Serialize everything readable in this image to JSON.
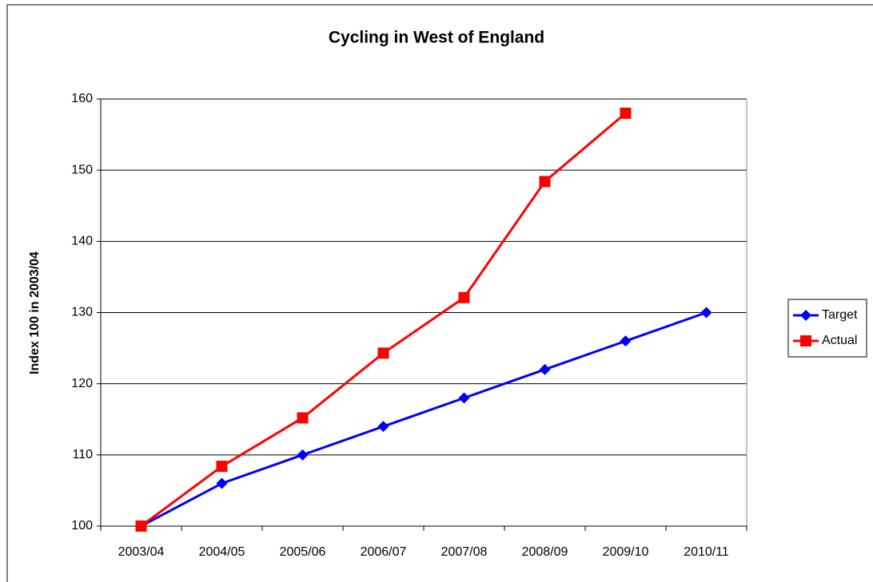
{
  "chart_data": {
    "type": "line",
    "title": "Cycling in West of England",
    "y_label": "Index 100 in 2003/04",
    "categories": [
      "2003/04",
      "2004/05",
      "2005/06",
      "2006/07",
      "2007/08",
      "2008/09",
      "2009/10",
      "2010/11"
    ],
    "series": [
      {
        "name": "Target",
        "color": "#0000ff",
        "marker": "diamond",
        "values": [
          100,
          106,
          110,
          114,
          118,
          122,
          126,
          130
        ]
      },
      {
        "name": "Actual",
        "color": "#ff0000",
        "marker": "square",
        "values": [
          100,
          108.4,
          115.2,
          124.3,
          132.1,
          148.4,
          158,
          null
        ]
      }
    ],
    "ylim": [
      100,
      160
    ],
    "yticks": [
      100,
      110,
      120,
      130,
      140,
      150,
      160
    ],
    "grid": true,
    "legend": "right"
  }
}
